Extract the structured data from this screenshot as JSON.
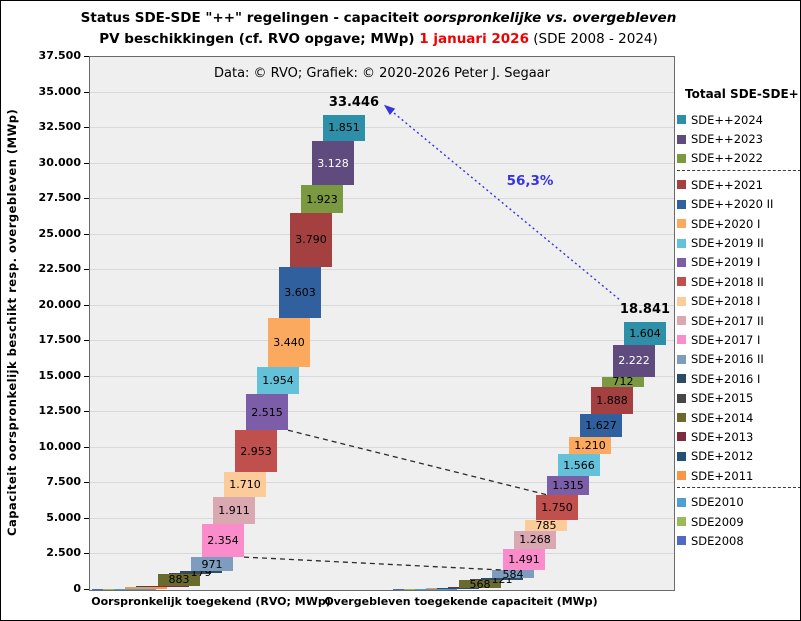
{
  "title": {
    "line1_prefix": "Status SDE-SDE \"++\" regelingen - capaciteit ",
    "line1_italic": "oorspronkelijke  vs. overgebleven",
    "line2_prefix": "PV beschikkingen  (cf. RVO opgave; MWp) ",
    "line2_date": "1 januari 2026",
    "line2_suffix": " (SDE 2008 - 2024)",
    "date_color": "#f00000"
  },
  "plot": {
    "copyright": "Data: © RVO;  Grafiek:  © 2020-2026  Peter J. Segaar",
    "y_axis_title": "Capaciteit oorspronkelijk beschikt resp. overgebleven (MWp)",
    "y_ticks": [
      "0",
      "2.500",
      "5.000",
      "7.500",
      "10.000",
      "12.500",
      "15.000",
      "17.500",
      "20.000",
      "22.500",
      "25.000",
      "27.500",
      "30.000",
      "32.500",
      "35.000",
      "37.500"
    ]
  },
  "chart_data": {
    "type": "bar",
    "stacked": true,
    "unit": "MWp",
    "title": "Status SDE-SDE \"++\" regelingen - capaciteit oorspronkelijke vs. overgebleven PV beschikkingen (cf. RVO opgave; MWp) 1 januari 2026 (SDE 2008 - 2024)",
    "categories": [
      "Oorspronkelijk toegekend (RVO; MWp)",
      "Overgebleven toegekende capaciteit (MWp)"
    ],
    "ylim": [
      0,
      37500
    ],
    "grid": true,
    "legend_position": "right",
    "legend_title": "Totaal SDE-SDE++",
    "legend_separators_after": [
      "SDE++2022",
      "SDE+2011"
    ],
    "connector_series": [
      "SDE+2019 I",
      "SDE+2017 I"
    ],
    "percentage_label": "56,3%",
    "accent_blue": "#3535db",
    "totals": {
      "original": 33446,
      "remaining": 18841,
      "original_label": "33.446",
      "remaining_label": "18.841"
    },
    "series": [
      {
        "name": "SDE2008",
        "color": "#5069c4",
        "original": 10,
        "remaining": 5,
        "label_original": "",
        "label_remaining": ""
      },
      {
        "name": "SDE2009",
        "color": "#9bbb59",
        "original": 20,
        "remaining": 10,
        "label_original": "",
        "label_remaining": ""
      },
      {
        "name": "SDE2010",
        "color": "#4d9fd4",
        "original": 69,
        "remaining": 40,
        "label_original": "",
        "label_remaining": ""
      },
      {
        "name": "SDE+2011",
        "color": "#f79646",
        "original": 95,
        "remaining": 45,
        "label_original": "",
        "label_remaining": ""
      },
      {
        "name": "SDE+2012",
        "color": "#215078",
        "original": 52,
        "remaining": 20,
        "label_original": "",
        "label_remaining": ""
      },
      {
        "name": "SDE+2013",
        "color": "#7e2b3f",
        "original": 26,
        "remaining": 5,
        "label_original": "",
        "label_remaining": ""
      },
      {
        "name": "SDE+2014",
        "color": "#6b6a2e",
        "original": 883,
        "remaining": 568,
        "label_original": "883",
        "label_remaining": "568"
      },
      {
        "name": "SDE+2015",
        "color": "#474747",
        "original": 9,
        "remaining": 5,
        "label_original": "",
        "label_remaining": ""
      },
      {
        "name": "SDE+2016 I",
        "color": "#2e4b66",
        "original": 179,
        "remaining": 121,
        "label_original": "179",
        "label_remaining": "121"
      },
      {
        "name": "SDE+2016 II",
        "color": "#7e9dbe",
        "original": 971,
        "remaining": 584,
        "label_original": "971",
        "label_remaining": "584"
      },
      {
        "name": "SDE+2017 I",
        "color": "#fb8ccb",
        "original": 2354,
        "remaining": 1491,
        "label_original": "2.354",
        "label_remaining": "1.491"
      },
      {
        "name": "SDE+2017 II",
        "color": "#d9a8b0",
        "original": 1911,
        "remaining": 1268,
        "label_original": "1.911",
        "label_remaining": "1.268"
      },
      {
        "name": "SDE+2018 I",
        "color": "#fbcb99",
        "original": 1710,
        "remaining": 785,
        "label_original": "1.710",
        "label_remaining": "785"
      },
      {
        "name": "SDE+2018 II",
        "color": "#c0504d",
        "original": 2953,
        "remaining": 1750,
        "label_original": "2.953",
        "label_remaining": "1.750"
      },
      {
        "name": "SDE+2019 I",
        "color": "#7b5ea7",
        "original": 2515,
        "remaining": 1315,
        "label_original": "2.515",
        "label_remaining": "1.315"
      },
      {
        "name": "SDE+2019 II",
        "color": "#63c1d9",
        "original": 1954,
        "remaining": 1566,
        "label_original": "1.954",
        "label_remaining": "1.566"
      },
      {
        "name": "SDE+2020 I",
        "color": "#faa95f",
        "original": 3440,
        "remaining": 1210,
        "label_original": "3.440",
        "label_remaining": "1.210"
      },
      {
        "name": "SDE++2020 II",
        "color": "#31609e",
        "original": 3603,
        "remaining": 1627,
        "label_original": "3.603",
        "label_remaining": "1.627"
      },
      {
        "name": "SDE++2021",
        "color": "#a54040",
        "original": 3790,
        "remaining": 1888,
        "label_original": "3.790",
        "label_remaining": "1.888"
      },
      {
        "name": "SDE++2022",
        "color": "#7a9940",
        "original": 1923,
        "remaining": 712,
        "label_original": "1.923",
        "label_remaining": "712"
      },
      {
        "name": "SDE++2023",
        "color": "#5f4b7e",
        "original": 3128,
        "remaining": 2222,
        "label_original": "3.128",
        "label_remaining": "2.222",
        "label_color": "#ffffff"
      },
      {
        "name": "SDE++2024",
        "color": "#2e8fa8",
        "original": 1851,
        "remaining": 1604,
        "label_original": "1.851",
        "label_remaining": "1.604"
      }
    ]
  }
}
